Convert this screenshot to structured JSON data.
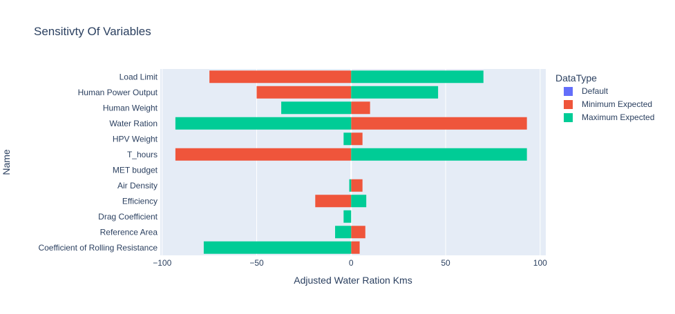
{
  "chart_data": {
    "type": "bar",
    "orientation": "horizontal",
    "barmode": "relative",
    "title": "Sensitivty Of Variables",
    "xlabel": "Adjusted Water Ration Kms",
    "ylabel": "Name",
    "xlim": [
      -101,
      103
    ],
    "xticks": [
      -100,
      -50,
      0,
      50,
      100
    ],
    "xtick_labels": [
      "−100",
      "−50",
      "0",
      "50",
      "100"
    ],
    "grid": true,
    "legend": {
      "title": "DataType",
      "placement": "right",
      "entries": [
        "Default",
        "Minimum Expected",
        "Maximum Expected"
      ]
    },
    "categories": [
      "Load Limit",
      "Human Power Output",
      "Human Weight",
      "Water Ration",
      "HPV Weight",
      "T_hours",
      "MET budget",
      "Air Density",
      "Efficiency",
      "Drag Coefficient",
      "Reference Area",
      "Coefficient of Rolling Resistance"
    ],
    "series": [
      {
        "name": "Default",
        "color": "#636efa",
        "values": [
          0,
          0,
          0,
          0,
          0,
          0,
          0,
          0,
          0,
          0,
          0,
          0
        ]
      },
      {
        "name": "Minimum Expected",
        "color": "#ef553b",
        "values": [
          -75,
          -50,
          10,
          93,
          6,
          -93,
          0,
          6,
          -19,
          0,
          7.5,
          4.5
        ]
      },
      {
        "name": "Maximum Expected",
        "color": "#00cc96",
        "values": [
          70,
          46,
          -37,
          -93,
          -4,
          93,
          0,
          -1,
          8,
          -4,
          -8.5,
          -78
        ]
      }
    ]
  }
}
